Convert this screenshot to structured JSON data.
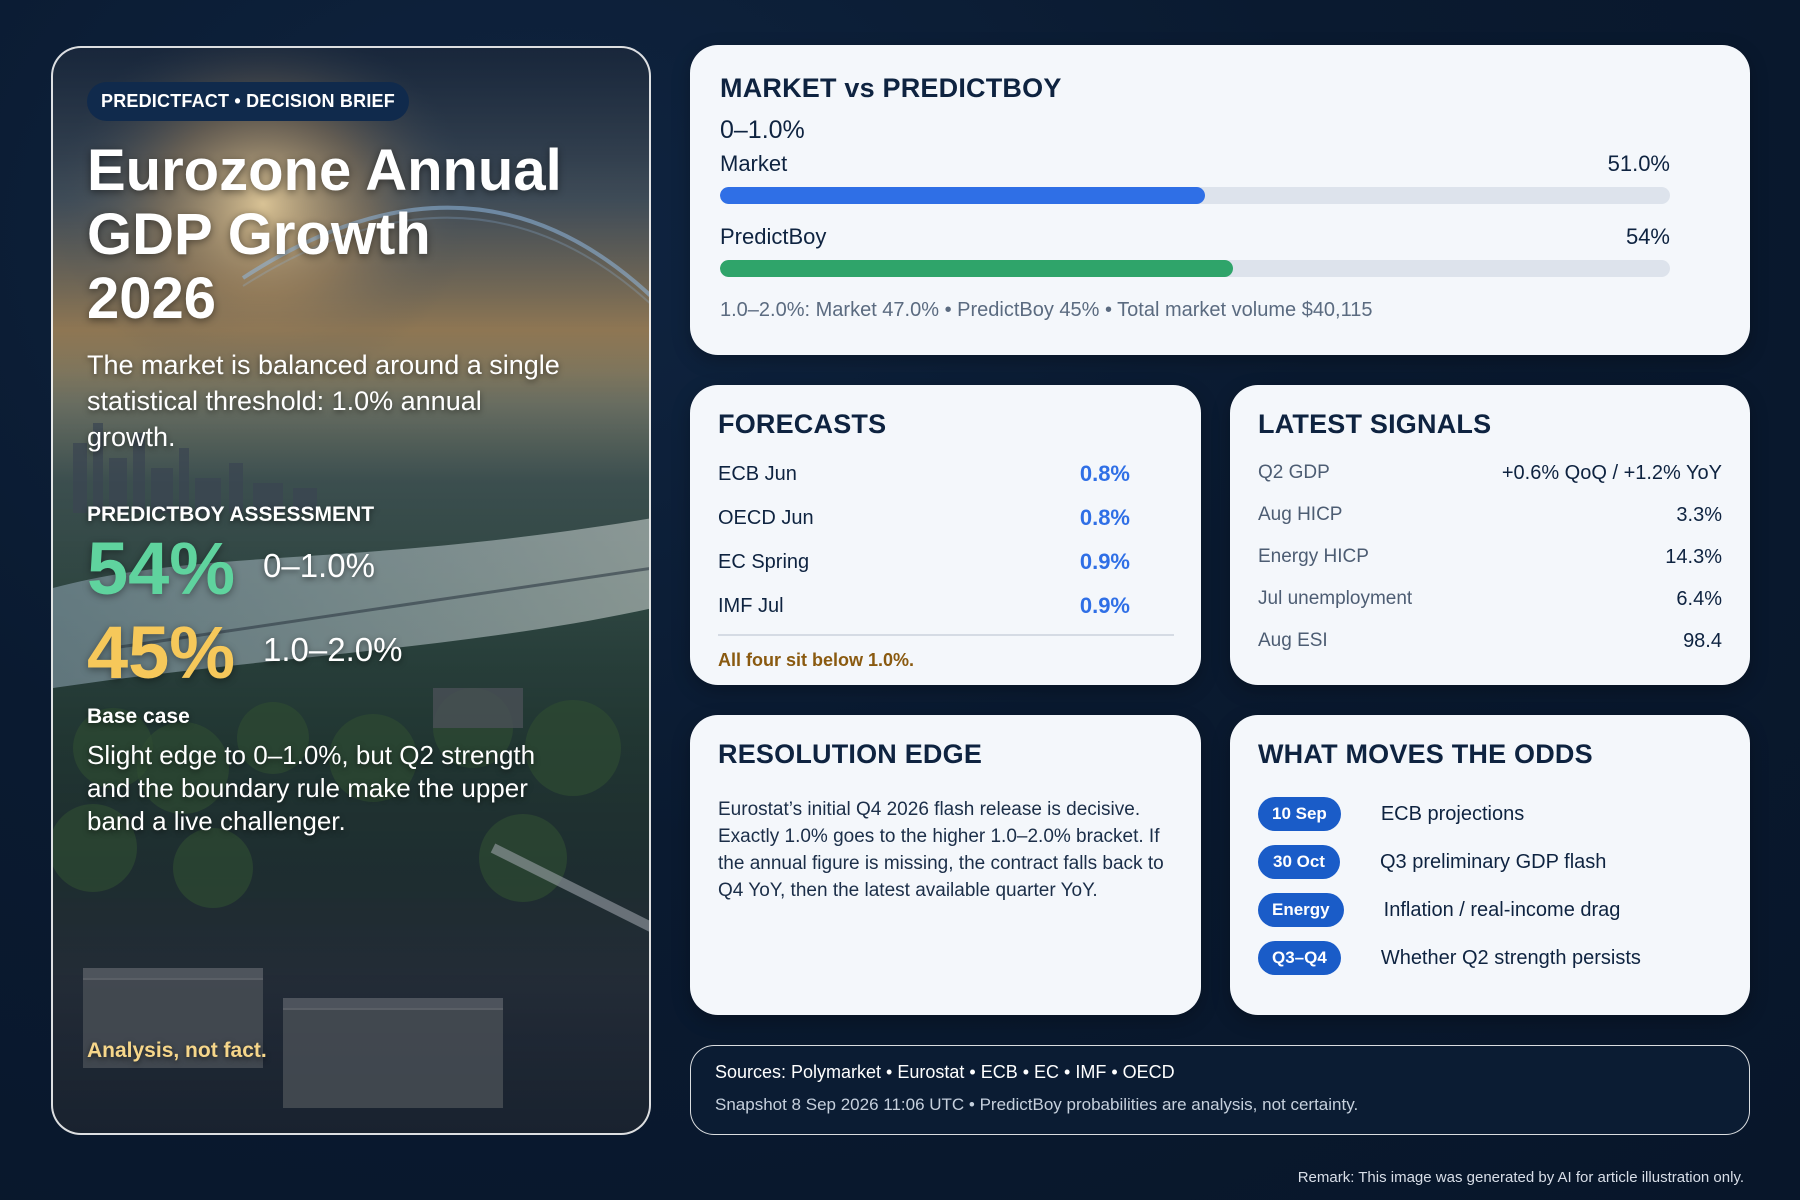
{
  "hero": {
    "pill": "PREDICTFACT • DECISION BRIEF",
    "title": "Eurozone Annual GDP Growth 2026",
    "subtitle": "The market is balanced around a single statistical threshold: 1.0% annual growth.",
    "assessment_label": "PREDICTBOY ASSESSMENT",
    "probabilities": [
      {
        "value": "54%",
        "band": "0–1.0%"
      },
      {
        "value": "45%",
        "band": "1.0–2.0%"
      }
    ],
    "base_case_label": "Base case",
    "base_case_text": "Slight edge to 0–1.0%, but Q2 strength and the boundary rule make the upper band a live challenger.",
    "analysis_note": "Analysis, not fact."
  },
  "market": {
    "title": "MARKET vs PREDICTBOY",
    "bracket": "0–1.0%",
    "bars": [
      {
        "label": "Market",
        "display": "51.0%",
        "value": 0.51
      },
      {
        "label": "PredictBoy",
        "display": "54%",
        "value": 0.54
      }
    ],
    "footer": "1.0–2.0%: Market 47.0% • PredictBoy 45% • Total market volume $40,115"
  },
  "forecasts": {
    "title": "FORECASTS",
    "rows": [
      {
        "label": "ECB Jun",
        "value": "0.8%"
      },
      {
        "label": "OECD Jun",
        "value": "0.8%"
      },
      {
        "label": "EC Spring",
        "value": "0.9%"
      },
      {
        "label": "IMF Jul",
        "value": "0.9%"
      }
    ],
    "note": "All four sit below 1.0%."
  },
  "signals": {
    "title": "LATEST SIGNALS",
    "rows": [
      {
        "label": "Q2 GDP",
        "value": "+0.6% QoQ / +1.2% YoY"
      },
      {
        "label": "Aug HICP",
        "value": "3.3%"
      },
      {
        "label": "Energy HICP",
        "value": "14.3%"
      },
      {
        "label": "Jul unemployment",
        "value": "6.4%"
      },
      {
        "label": "Aug ESI",
        "value": "98.4"
      }
    ]
  },
  "resolution": {
    "title": "RESOLUTION EDGE",
    "text": "Eurostat’s initial Q4 2026 flash release is decisive. Exactly 1.0% goes to the higher 1.0–2.0% bracket. If the annual figure is missing, the contract falls back to Q4 YoY, then the latest available quarter YoY."
  },
  "odds": {
    "title": "WHAT MOVES THE ODDS",
    "rows": [
      {
        "badge": "10 Sep",
        "label": "ECB projections"
      },
      {
        "badge": "30 Oct",
        "label": "Q3 preliminary GDP flash"
      },
      {
        "badge": "Energy",
        "label": "Inflation / real-income drag"
      },
      {
        "badge": "Q3–Q4",
        "label": "Whether Q2 strength persists"
      }
    ]
  },
  "sources": {
    "line1": "Sources: Polymarket • Eurostat • ECB • EC • IMF • OECD",
    "line2": "Snapshot 8 Sep 2026 11:06 UTC • PredictBoy probabilities are analysis, not certainty."
  },
  "remark": "Remark: This image was generated by AI for article illustration only.",
  "colors": {
    "accent_blue": "#2f6fe6",
    "accent_green": "#2fa46a",
    "prob_green": "#5fd39e",
    "prob_yellow": "#f6c85a",
    "badge_blue": "#1a5cc8",
    "note_brown": "#8a5a10"
  }
}
